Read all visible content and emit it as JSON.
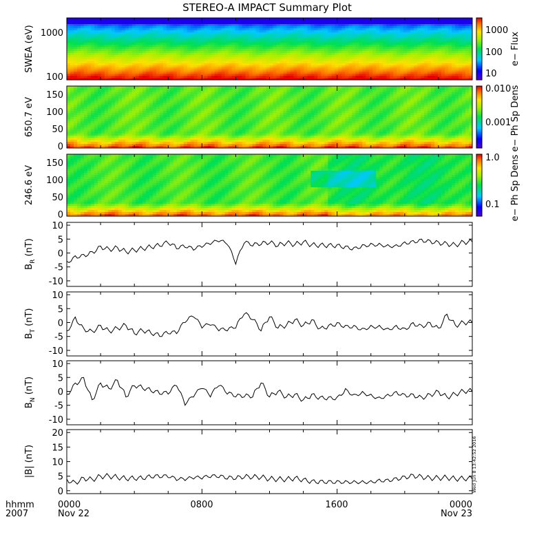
{
  "title": "STEREO-A IMPACT Summary Plot",
  "side_stamp": "Wed Jun  8 13:42:52 2016",
  "time_axis": {
    "row1_label": "hhmm",
    "row2_label": "2007",
    "ticks": [
      {
        "hour": 0,
        "label": "0000",
        "sublabel": "Nov 22"
      },
      {
        "hour": 8,
        "label": "0800",
        "sublabel": ""
      },
      {
        "hour": 16,
        "label": "1600",
        "sublabel": ""
      },
      {
        "hour": 24,
        "label": "0000",
        "sublabel": "Nov 23"
      }
    ],
    "xlim_hours": [
      0,
      24
    ]
  },
  "spectrograms": [
    {
      "ylabel": "SWEA (eV)",
      "yscale": "log",
      "ylim": [
        90,
        2000
      ],
      "yticks": [
        "100",
        "1000"
      ],
      "colorbar_label": "e− Flux",
      "colorbar_ticks": [
        "1000",
        "100",
        "10"
      ],
      "colorbar_scale": "log",
      "colorbar_range": [
        5,
        8000
      ]
    },
    {
      "ylabel": "650.7 eV",
      "yscale": "linear",
      "ylim": [
        0,
        180
      ],
      "yticks": [
        "0",
        "50",
        "100",
        "150"
      ],
      "colorbar_label": "e− Ph Sp Dens",
      "colorbar_ticks": [
        "0.010",
        "0.001"
      ],
      "colorbar_scale": "log",
      "colorbar_range": [
        0.0001,
        0.012
      ]
    },
    {
      "ylabel": "246.6 eV",
      "yscale": "linear",
      "ylim": [
        0,
        180
      ],
      "yticks": [
        "0",
        "50",
        "100",
        "150"
      ],
      "colorbar_label": "e− Ph Sp Dens",
      "colorbar_ticks": [
        "1.0",
        "0.1"
      ],
      "colorbar_scale": "log",
      "colorbar_range": [
        0.03,
        1.1
      ]
    }
  ],
  "line_panels": [
    {
      "ylabel": "B",
      "ylabel_sub": "R",
      "ylabel_unit": " (nT)",
      "ylim": [
        -12,
        11
      ],
      "yticks": [
        "-10",
        "-5",
        "0",
        "5",
        "10"
      ],
      "tick_values": [
        -10,
        -5,
        0,
        5,
        10
      ]
    },
    {
      "ylabel": "B",
      "ylabel_sub": "T",
      "ylabel_unit": " (nT)",
      "ylim": [
        -12,
        11
      ],
      "yticks": [
        "-10",
        "-5",
        "0",
        "5",
        "10"
      ],
      "tick_values": [
        -10,
        -5,
        0,
        5,
        10
      ]
    },
    {
      "ylabel": "B",
      "ylabel_sub": "N",
      "ylabel_unit": " (nT)",
      "ylim": [
        -12,
        11
      ],
      "yticks": [
        "-10",
        "-5",
        "0",
        "5",
        "10"
      ],
      "tick_values": [
        -10,
        -5,
        0,
        5,
        10
      ]
    },
    {
      "ylabel": "|B|",
      "ylabel_sub": "",
      "ylabel_unit": " (nT)",
      "ylim": [
        -1,
        21
      ],
      "yticks": [
        "0",
        "5",
        "10",
        "15",
        "20"
      ],
      "tick_values": [
        0,
        5,
        10,
        15,
        20
      ]
    }
  ],
  "chart_data": {
    "type": "line",
    "title": "STEREO-A IMPACT Summary Plot",
    "xlabel": "hhmm 2007",
    "x_hours": [
      0,
      0.5,
      1,
      1.5,
      2,
      2.5,
      3,
      3.5,
      4,
      4.5,
      5,
      5.5,
      6,
      6.5,
      7,
      7.5,
      8,
      8.5,
      9,
      9.5,
      10,
      10.5,
      11,
      11.5,
      12,
      12.5,
      13,
      13.5,
      14,
      14.5,
      15,
      15.5,
      16,
      16.5,
      17,
      17.5,
      18,
      18.5,
      19,
      19.5,
      20,
      20.5,
      21,
      21.5,
      22,
      22.5,
      23,
      23.5,
      24
    ],
    "series": [
      {
        "name": "BR (nT)",
        "values": [
          -3,
          -1,
          -0.5,
          0.5,
          2.5,
          1.5,
          2,
          0.5,
          1,
          1.5,
          2,
          2.5,
          3.5,
          1.5,
          2,
          1,
          2,
          3,
          4,
          3,
          -4,
          3.5,
          2.5,
          3,
          3.5,
          2.5,
          3.5,
          3,
          4,
          3,
          3,
          3,
          3,
          2.5,
          2,
          3,
          3.5,
          3.5,
          3,
          3,
          4,
          4.5,
          5,
          4.5,
          4,
          3.5,
          3,
          4,
          4
        ]
      },
      {
        "name": "BT (nT)",
        "values": [
          -3,
          2,
          -2,
          -3,
          -1,
          -3,
          -2,
          -1,
          -4,
          -3,
          -4,
          -5,
          -4,
          -4,
          0,
          2,
          -2,
          -1,
          -3,
          -3,
          -2,
          3,
          1,
          -3,
          2,
          -2,
          -1,
          1,
          -1,
          1,
          -2,
          -1,
          0,
          -1,
          -1,
          -2,
          -1,
          -1,
          -2,
          -1,
          -2,
          0,
          -1,
          0,
          -2,
          3,
          -1,
          0,
          0
        ]
      },
      {
        "name": "BN (nT)",
        "values": [
          -1,
          3,
          5,
          -3,
          3,
          1,
          4,
          -2,
          2,
          1,
          0,
          -1,
          -1,
          2,
          -5,
          -2,
          1,
          -2,
          2,
          -1,
          -2,
          -2,
          -2,
          3,
          -2,
          0,
          -2,
          -1,
          -3,
          -1,
          -2,
          -2,
          -2,
          1,
          -1,
          0,
          -1,
          -2,
          -1,
          0,
          -1,
          -1,
          -2,
          -1,
          0,
          -2,
          -1,
          0,
          0
        ]
      },
      {
        "name": "|B| (nT)",
        "values": [
          4,
          3,
          4.5,
          4,
          5,
          5,
          4.5,
          4,
          4,
          4,
          4.5,
          4.5,
          4.5,
          3.5,
          3.5,
          4,
          4,
          4.5,
          4.5,
          4,
          4,
          4.5,
          4.5,
          4.5,
          4,
          4,
          4,
          4.5,
          4,
          3.5,
          3.5,
          3.5,
          3.5,
          3.5,
          3.5,
          3.5,
          3.5,
          4,
          4,
          4.5,
          5,
          5.5,
          5,
          4.5,
          4.5,
          4.5,
          4,
          4,
          4
        ]
      }
    ]
  }
}
